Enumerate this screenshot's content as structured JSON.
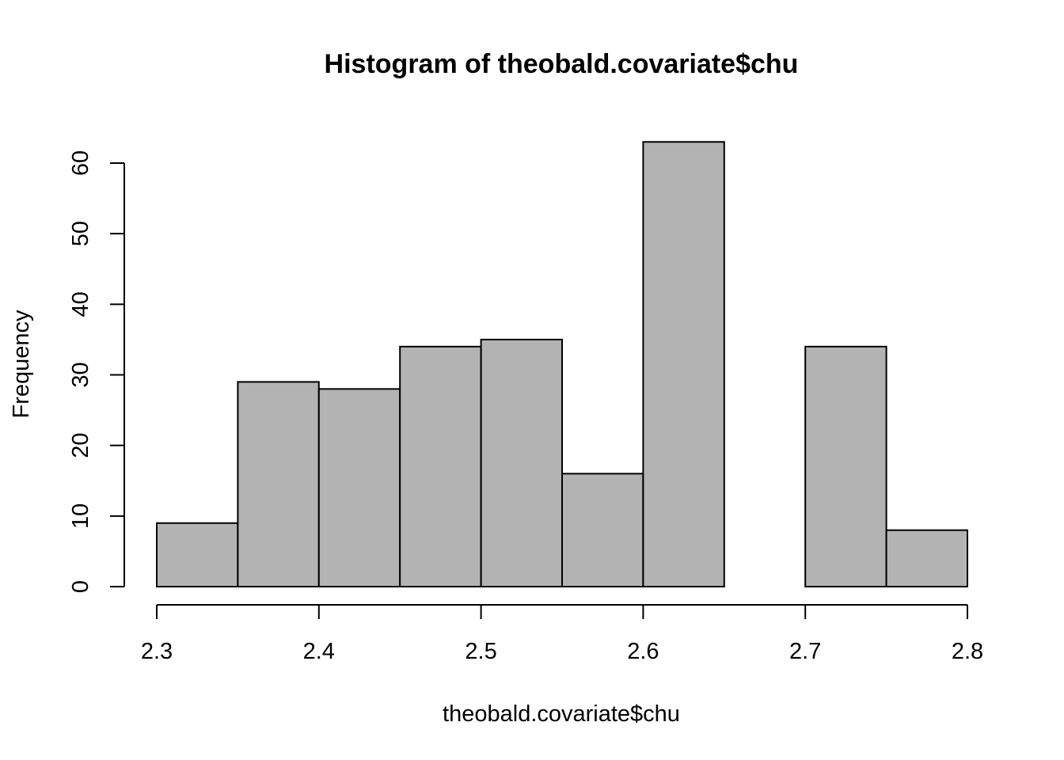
{
  "chart_data": {
    "type": "bar",
    "subtype": "histogram",
    "title": "Histogram of theobald.covariate$chu",
    "xlabel": "theobald.covariate$chu",
    "ylabel": "Frequency",
    "bins": [
      {
        "start": 2.3,
        "end": 2.35,
        "count": 9
      },
      {
        "start": 2.35,
        "end": 2.4,
        "count": 29
      },
      {
        "start": 2.4,
        "end": 2.45,
        "count": 28
      },
      {
        "start": 2.45,
        "end": 2.5,
        "count": 34
      },
      {
        "start": 2.5,
        "end": 2.55,
        "count": 35
      },
      {
        "start": 2.55,
        "end": 2.6,
        "count": 16
      },
      {
        "start": 2.6,
        "end": 2.65,
        "count": 63
      },
      {
        "start": 2.65,
        "end": 2.7,
        "count": 0
      },
      {
        "start": 2.7,
        "end": 2.75,
        "count": 34
      },
      {
        "start": 2.75,
        "end": 2.8,
        "count": 8
      }
    ],
    "xlim": [
      2.3,
      2.8
    ],
    "ylim": [
      0,
      60
    ],
    "x_ticks": [
      "2.3",
      "2.4",
      "2.5",
      "2.6",
      "2.7",
      "2.8"
    ],
    "y_ticks": [
      "0",
      "10",
      "20",
      "30",
      "40",
      "50",
      "60"
    ],
    "bar_color": "#b3b3b3",
    "grid": false,
    "legend": "none"
  }
}
